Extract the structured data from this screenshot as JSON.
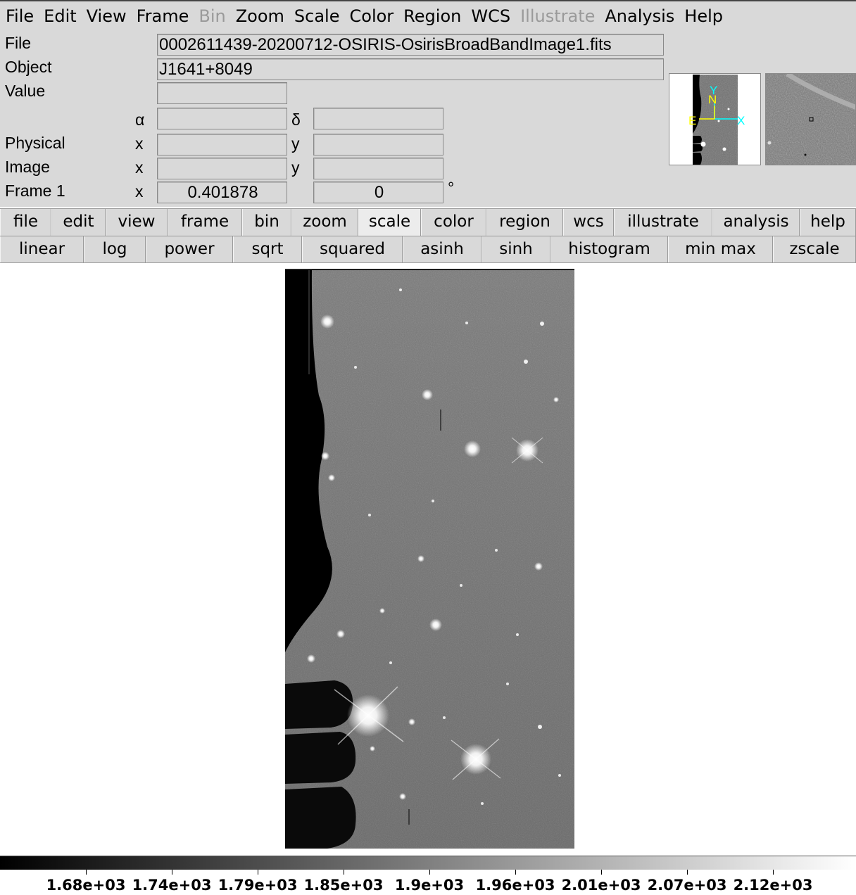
{
  "menubar": [
    "File",
    "Edit",
    "View",
    "Frame",
    "Bin",
    "Zoom",
    "Scale",
    "Color",
    "Region",
    "WCS",
    "Illustrate",
    "Analysis",
    "Help"
  ],
  "menubar_disabled": [
    "Bin",
    "Illustrate"
  ],
  "info": {
    "file_label": "File",
    "file_value": "0002611439-20200712-OSIRIS-OsirisBroadBandImage1.fits",
    "object_label": "Object",
    "object_value": "J1641+8049",
    "value_label": "Value",
    "value_value": "",
    "alpha_label": "α",
    "delta_label": "δ",
    "physical_label": "Physical",
    "image_label": "Image",
    "frame_label": "Frame 1",
    "x_label": "x",
    "y_label": "y",
    "frame_x_value": "0.401878",
    "frame_y_value": "0",
    "degree_symbol": "°"
  },
  "compass": {
    "north": "N",
    "east": "E",
    "y_axis": "Y",
    "x_axis": "X"
  },
  "buttonbar": [
    "file",
    "edit",
    "view",
    "frame",
    "bin",
    "zoom",
    "scale",
    "color",
    "region",
    "wcs",
    "illustrate",
    "analysis",
    "help"
  ],
  "buttonbar_active": "scale",
  "scalebar": [
    "linear",
    "log",
    "power",
    "sqrt",
    "squared",
    "asinh",
    "sinh",
    "histogram",
    "min max",
    "zscale"
  ],
  "colorbar_ticks": [
    "1.68e+03",
    "1.74e+03",
    "1.79e+03",
    "1.85e+03",
    "1.9e+03",
    "1.96e+03",
    "2.01e+03",
    "2.07e+03",
    "2.12e+03"
  ],
  "colors": {
    "panel": "#d9d9d9",
    "compass_yellow": "#ffff00",
    "compass_cyan": "#00ffff"
  }
}
